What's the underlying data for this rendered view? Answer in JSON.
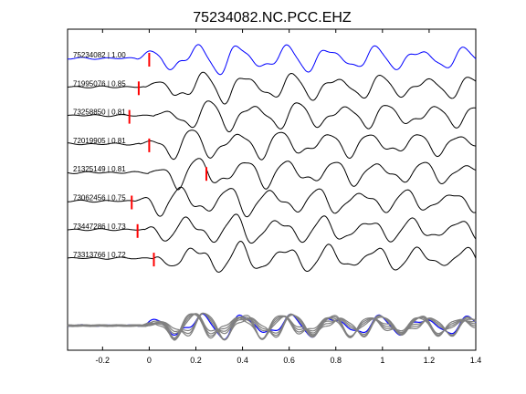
{
  "chart_data": {
    "type": "line",
    "title": "75234082.NC.PCC.EHZ",
    "xlabel": "",
    "ylabel": "",
    "xlim": [
      -0.35,
      1.4
    ],
    "x_ticks": [
      "-0.2",
      "0",
      "0.2",
      "0.4",
      "0.6",
      "0.8",
      "1",
      "1.2",
      "1.4"
    ],
    "x_tick_values": [
      -0.2,
      0,
      0.2,
      0.4,
      0.6,
      0.8,
      1.0,
      1.2,
      1.4
    ],
    "grid": false,
    "legend": "none",
    "colors": {
      "reference": "#0000ff",
      "trace": "#000000",
      "pick": "#ff0000",
      "stack": "#808080"
    },
    "series": [
      {
        "event_id": "75234082",
        "correlation": "1.00",
        "label": "75234082 | 1.00",
        "pick_time": 0.0,
        "reference": true
      },
      {
        "event_id": "71995076",
        "correlation": "0.85",
        "label": "71995076 | 0.85",
        "pick_time": -0.045
      },
      {
        "event_id": "73258850",
        "correlation": "0.81",
        "label": "73258850 | 0.81",
        "pick_time": -0.085
      },
      {
        "event_id": "72019905",
        "correlation": "0.81",
        "label": "72019905 | 0.81",
        "pick_time": 0.0
      },
      {
        "event_id": "21325149",
        "correlation": "0.81",
        "label": "21325149 | 0.81",
        "pick_time": 0.245
      },
      {
        "event_id": "73062456",
        "correlation": "0.75",
        "label": "73062456 | 0.75",
        "pick_time": -0.075
      },
      {
        "event_id": "73447286",
        "correlation": "0.73",
        "label": "73447286 | 0.73",
        "pick_time": -0.05
      },
      {
        "event_id": "73313766",
        "correlation": "0.72",
        "label": "73313766 | 0.72",
        "pick_time": 0.02
      }
    ]
  }
}
